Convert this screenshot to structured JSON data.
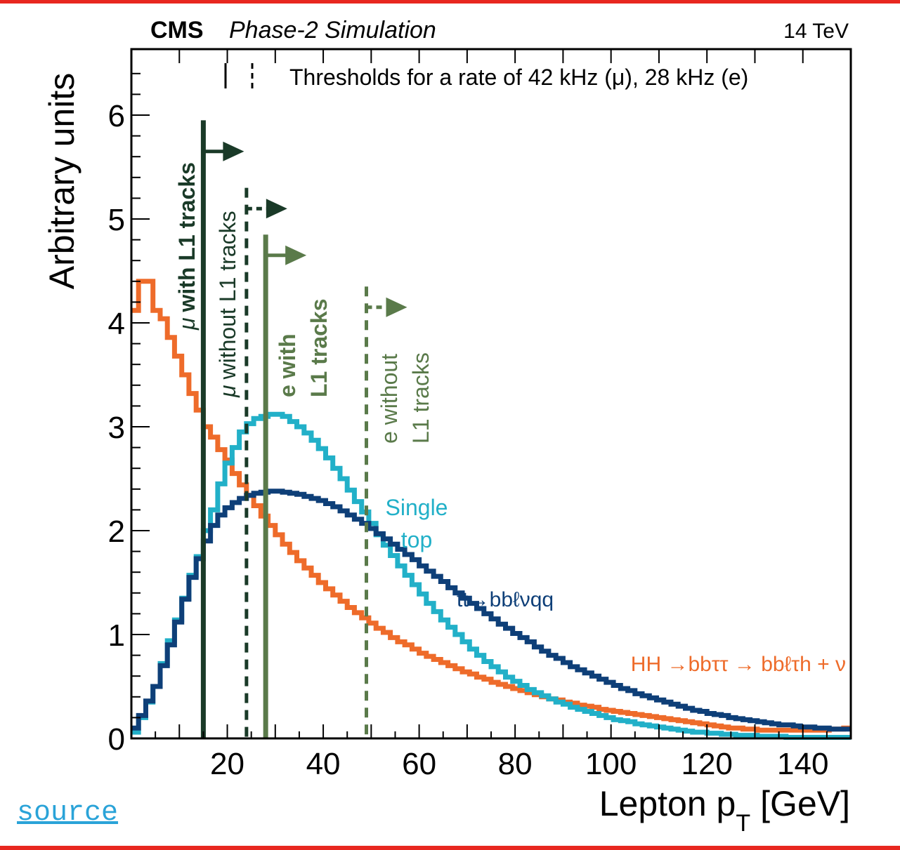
{
  "chart_data": {
    "type": "line",
    "header": {
      "experiment": "CMS",
      "subtitle": "Phase-2 Simulation",
      "energy": "14 TeV"
    },
    "xlabel": "Lepton p",
    "xlabel_sub": "T",
    "xlabel_unit": "[GeV]",
    "ylabel": "Arbitrary units",
    "xlim": [
      0,
      150
    ],
    "ylim": [
      0,
      6.6
    ],
    "xticks": [
      20,
      40,
      60,
      80,
      100,
      120,
      140
    ],
    "yticks": [
      0,
      1,
      2,
      3,
      4,
      5,
      6
    ],
    "grid": false,
    "legend_text": "Thresholds for a rate of 42 kHz (μ), 28 kHz (e)",
    "thresholds": [
      {
        "name": "μ with L1 tracks",
        "x": 15,
        "style": "solid",
        "color": "#1a3a28",
        "top": 5.95,
        "arrow_y": 5.65
      },
      {
        "name": "μ without L1 tracks",
        "x": 24,
        "style": "dashed",
        "color": "#1a3a28",
        "top": 5.3,
        "arrow_y": 5.1
      },
      {
        "name": "e with L1 tracks",
        "x": 28,
        "style": "solid",
        "color": "#5a7a4a",
        "top": 4.85,
        "arrow_y": 4.65
      },
      {
        "name": "e without L1 tracks",
        "x": 49,
        "style": "dashed",
        "color": "#5a7a4a",
        "top": 4.35,
        "arrow_y": 4.15
      }
    ],
    "series": [
      {
        "name": "HH →bbττ → bbℓτh + ν",
        "color": "#ee6b2a",
        "bin_width": 1.5,
        "values": [
          4.12,
          4.4,
          4.4,
          4.12,
          4.04,
          3.86,
          3.68,
          3.5,
          3.32,
          3.16,
          3.0,
          2.9,
          2.78,
          2.68,
          2.55,
          2.44,
          2.34,
          2.24,
          2.14,
          2.05,
          1.96,
          1.87,
          1.79,
          1.71,
          1.64,
          1.57,
          1.5,
          1.44,
          1.38,
          1.32,
          1.26,
          1.21,
          1.16,
          1.11,
          1.06,
          1.02,
          0.97,
          0.93,
          0.9,
          0.86,
          0.82,
          0.79,
          0.76,
          0.73,
          0.7,
          0.67,
          0.64,
          0.62,
          0.59,
          0.57,
          0.54,
          0.52,
          0.5,
          0.48,
          0.46,
          0.44,
          0.42,
          0.4,
          0.38,
          0.37,
          0.35,
          0.34,
          0.32,
          0.31,
          0.3,
          0.28,
          0.27,
          0.26,
          0.25,
          0.24,
          0.23,
          0.22,
          0.21,
          0.2,
          0.19,
          0.18,
          0.17,
          0.16,
          0.15,
          0.14,
          0.13,
          0.12,
          0.11,
          0.1,
          0.1,
          0.09,
          0.09,
          0.08,
          0.08,
          0.08,
          0.08,
          0.08,
          0.08,
          0.08,
          0.08,
          0.08,
          0.08,
          0.09,
          0.09,
          0.1
        ]
      },
      {
        "name": "Single top",
        "color": "#22b0c8",
        "bin_width": 1.5,
        "values": [
          0.06,
          0.2,
          0.35,
          0.5,
          0.72,
          0.94,
          1.14,
          1.35,
          1.57,
          1.75,
          2.0,
          2.2,
          2.45,
          2.65,
          2.8,
          2.95,
          3.03,
          3.08,
          3.1,
          3.12,
          3.12,
          3.1,
          3.05,
          3.0,
          2.94,
          2.87,
          2.79,
          2.7,
          2.6,
          2.5,
          2.39,
          2.28,
          2.18,
          2.07,
          1.96,
          1.86,
          1.76,
          1.66,
          1.57,
          1.48,
          1.39,
          1.3,
          1.22,
          1.14,
          1.07,
          1.0,
          0.93,
          0.86,
          0.8,
          0.74,
          0.69,
          0.64,
          0.59,
          0.55,
          0.51,
          0.47,
          0.44,
          0.41,
          0.38,
          0.35,
          0.33,
          0.3,
          0.28,
          0.26,
          0.24,
          0.22,
          0.2,
          0.18,
          0.17,
          0.16,
          0.14,
          0.13,
          0.12,
          0.11,
          0.1,
          0.09,
          0.08,
          0.07,
          0.06,
          0.06,
          0.05,
          0.05,
          0.04,
          0.04,
          0.03,
          0.03,
          0.03,
          0.02,
          0.02,
          0.02,
          0.02,
          0.01,
          0.01,
          0.01,
          0.01,
          0.01,
          0.01,
          0.01,
          0.01,
          0.01
        ]
      },
      {
        "name": "tt→bbℓνqq",
        "color": "#0e3f78",
        "bin_width": 1.5,
        "values": [
          0.1,
          0.22,
          0.36,
          0.5,
          0.7,
          0.9,
          1.12,
          1.34,
          1.55,
          1.73,
          1.9,
          2.05,
          2.15,
          2.22,
          2.27,
          2.31,
          2.34,
          2.36,
          2.37,
          2.38,
          2.38,
          2.37,
          2.36,
          2.35,
          2.33,
          2.31,
          2.29,
          2.26,
          2.23,
          2.19,
          2.15,
          2.11,
          2.07,
          2.02,
          1.97,
          1.92,
          1.87,
          1.82,
          1.77,
          1.72,
          1.66,
          1.61,
          1.56,
          1.51,
          1.45,
          1.4,
          1.35,
          1.3,
          1.25,
          1.2,
          1.15,
          1.1,
          1.06,
          1.01,
          0.97,
          0.93,
          0.88,
          0.84,
          0.8,
          0.77,
          0.73,
          0.69,
          0.66,
          0.63,
          0.6,
          0.57,
          0.54,
          0.51,
          0.48,
          0.46,
          0.43,
          0.41,
          0.39,
          0.37,
          0.35,
          0.33,
          0.31,
          0.29,
          0.27,
          0.26,
          0.24,
          0.23,
          0.22,
          0.2,
          0.19,
          0.18,
          0.17,
          0.16,
          0.15,
          0.14,
          0.13,
          0.13,
          0.12,
          0.11,
          0.11,
          0.1,
          0.1,
          0.09,
          0.09,
          0.09
        ]
      }
    ],
    "series_labels": {
      "single_top_line1": "Single",
      "single_top_line2": "top",
      "ttbar": "tt→bbℓνqq",
      "hh": "HH →bbττ → bbℓτh + ν"
    },
    "threshold_labels": {
      "mu_with_symbol": "μ",
      "mu_with_text": "with L1 tracks",
      "mu_without_symbol": "μ",
      "mu_without_text": "without L1 tracks",
      "e_with_line1": "e with",
      "e_with_line2": "L1 tracks",
      "e_without_line1": "e without",
      "e_without_line2": "L1 tracks"
    }
  },
  "source_link": "source"
}
